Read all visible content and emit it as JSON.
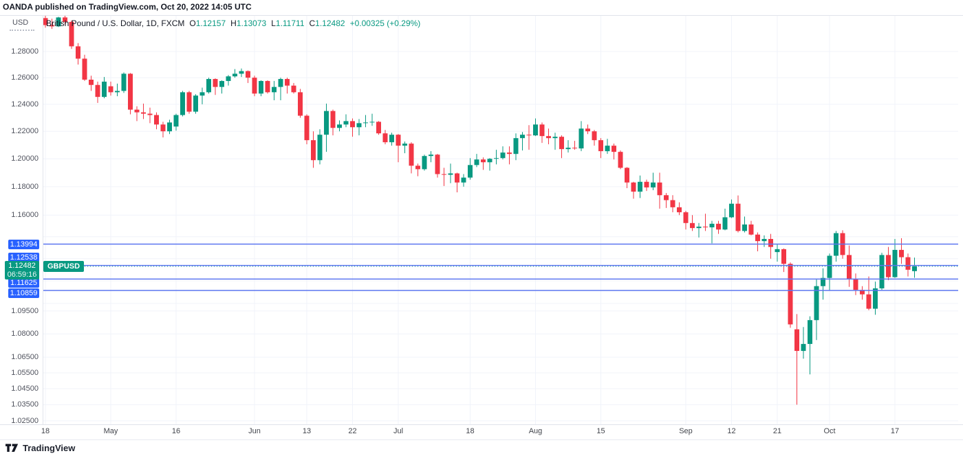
{
  "header": {
    "published_line": "OANDA published on TradingView.com, Oct 20, 2022 14:05 UTC"
  },
  "legend": {
    "symbol_title": "British Pound / U.S. Dollar, 1D, FXCM",
    "o_label": "O",
    "o": "1.12157",
    "h_label": "H",
    "h": "1.13073",
    "l_label": "L",
    "l": "1.11711",
    "c_label": "C",
    "c": "1.12482",
    "change": "+0.00325 (+0.29%)"
  },
  "price_scale_currency": "USD",
  "current": {
    "tag": "GBPUSD",
    "price": 1.12482,
    "price_text": "1.12482",
    "countdown": "06:59:16"
  },
  "footer": {
    "brand": "TradingView"
  },
  "colors": {
    "up": "#089981",
    "down": "#f23645",
    "grid": "#f0f3fa",
    "border": "#e0e3eb",
    "level_line": "#5c76f0",
    "level_label_bg": "#2962ff",
    "current_line": "#089981",
    "current_label_bg": "#089981",
    "axis_text": "#50535e",
    "title_text": "#131722"
  },
  "chart_data": {
    "type": "candlestick",
    "title": "British Pound / U.S. Dollar, 1D, FXCM",
    "symbol": "GBPUSD",
    "interval": "1D",
    "exchange": "FXCM",
    "y_scale": {
      "type": "log",
      "labels": [
        {
          "price": 1.28,
          "text": "1.28000"
        },
        {
          "price": 1.26,
          "text": "1.26000"
        },
        {
          "price": 1.24,
          "text": "1.24000"
        },
        {
          "price": 1.22,
          "text": "1.22000"
        },
        {
          "price": 1.2,
          "text": "1.20000"
        },
        {
          "price": 1.18,
          "text": "1.18000"
        },
        {
          "price": 1.16,
          "text": "1.16000"
        },
        {
          "price": 1.095,
          "text": "1.09500"
        },
        {
          "price": 1.08,
          "text": "1.08000"
        },
        {
          "price": 1.065,
          "text": "1.06500"
        },
        {
          "price": 1.055,
          "text": "1.05500"
        },
        {
          "price": 1.045,
          "text": "1.04500"
        },
        {
          "price": 1.035,
          "text": "1.03500"
        },
        {
          "price": 1.025,
          "text": "1.02500"
        }
      ],
      "unlabeled_gridlines": [
        1.145,
        1.13,
        1.115,
        1.1
      ]
    },
    "x_ticks": [
      {
        "index": 0,
        "text": "18"
      },
      {
        "index": 10,
        "text": "May"
      },
      {
        "index": 20,
        "text": "16"
      },
      {
        "index": 32,
        "text": "Jun"
      },
      {
        "index": 40,
        "text": "13"
      },
      {
        "index": 47,
        "text": "22"
      },
      {
        "index": 54,
        "text": "Jul"
      },
      {
        "index": 65,
        "text": "18"
      },
      {
        "index": 75,
        "text": "Aug"
      },
      {
        "index": 85,
        "text": "15"
      },
      {
        "index": 98,
        "text": "Sep"
      },
      {
        "index": 105,
        "text": "12"
      },
      {
        "index": 112,
        "text": "21"
      },
      {
        "index": 120,
        "text": "Oct"
      },
      {
        "index": 130,
        "text": "17"
      }
    ],
    "levels": [
      {
        "price": 1.13994,
        "text": "1.13994"
      },
      {
        "price": 1.12538,
        "text": "1.12538"
      },
      {
        "price": 1.11625,
        "text": "1.11625"
      },
      {
        "price": 1.10859,
        "text": "1.10859"
      }
    ],
    "last_price": 1.12482,
    "ohlc_last": {
      "open": 1.12157,
      "high": 1.13073,
      "low": 1.11711,
      "close": 1.12482,
      "change": "+0.00325 (+0.29%)"
    },
    "candles": [
      [
        1.306,
        1.309,
        1.2985,
        1.3005
      ],
      [
        1.3005,
        1.3055,
        1.2975,
        1.2995
      ],
      [
        1.2995,
        1.307,
        1.299,
        1.3065
      ],
      [
        1.3065,
        1.3085,
        1.301,
        1.303
      ],
      [
        1.303,
        1.304,
        1.282,
        1.284
      ],
      [
        1.284,
        1.2865,
        1.27,
        1.2745
      ],
      [
        1.2745,
        1.2775,
        1.2575,
        1.2585
      ],
      [
        1.2585,
        1.2615,
        1.25,
        1.2545
      ],
      [
        1.2545,
        1.257,
        1.241,
        1.2455
      ],
      [
        1.2455,
        1.2605,
        1.2445,
        1.257
      ],
      [
        1.2535,
        1.257,
        1.2465,
        1.249
      ],
      [
        1.249,
        1.2555,
        1.246,
        1.25
      ],
      [
        1.25,
        1.264,
        1.2485,
        1.263
      ],
      [
        1.263,
        1.2635,
        1.2325,
        1.236
      ],
      [
        1.236,
        1.2385,
        1.2275,
        1.234
      ],
      [
        1.234,
        1.2405,
        1.229,
        1.233
      ],
      [
        1.233,
        1.2375,
        1.226,
        1.232
      ],
      [
        1.232,
        1.234,
        1.2215,
        1.225
      ],
      [
        1.225,
        1.227,
        1.2155,
        1.22
      ],
      [
        1.22,
        1.2285,
        1.218,
        1.2265
      ],
      [
        1.2235,
        1.233,
        1.2205,
        1.232
      ],
      [
        1.232,
        1.25,
        1.231,
        1.249
      ],
      [
        1.249,
        1.25,
        1.233,
        1.2345
      ],
      [
        1.2345,
        1.2475,
        1.233,
        1.2465
      ],
      [
        1.2465,
        1.2525,
        1.24,
        1.249
      ],
      [
        1.249,
        1.26,
        1.248,
        1.259
      ],
      [
        1.259,
        1.2595,
        1.247,
        1.253
      ],
      [
        1.253,
        1.258,
        1.248,
        1.2575
      ],
      [
        1.2575,
        1.262,
        1.254,
        1.261
      ],
      [
        1.261,
        1.2665,
        1.26,
        1.263
      ],
      [
        1.263,
        1.267,
        1.2605,
        1.265
      ],
      [
        1.265,
        1.2655,
        1.256,
        1.26
      ],
      [
        1.26,
        1.2615,
        1.246,
        1.248
      ],
      [
        1.248,
        1.258,
        1.246,
        1.2575
      ],
      [
        1.2575,
        1.258,
        1.248,
        1.249
      ],
      [
        1.249,
        1.2575,
        1.243,
        1.253
      ],
      [
        1.253,
        1.26,
        1.243,
        1.259
      ],
      [
        1.259,
        1.26,
        1.248,
        1.254
      ],
      [
        1.254,
        1.256,
        1.248,
        1.249
      ],
      [
        1.249,
        1.2515,
        1.23,
        1.2315
      ],
      [
        1.2315,
        1.2325,
        1.2105,
        1.2135
      ],
      [
        1.2135,
        1.22,
        1.1935,
        1.199
      ],
      [
        1.199,
        1.2215,
        1.196,
        1.2175
      ],
      [
        1.2175,
        1.2405,
        1.205,
        1.235
      ],
      [
        1.235,
        1.236,
        1.217,
        1.2225
      ],
      [
        1.2225,
        1.228,
        1.22,
        1.225
      ],
      [
        1.225,
        1.2325,
        1.223,
        1.2275
      ],
      [
        1.2275,
        1.2295,
        1.216,
        1.223
      ],
      [
        1.223,
        1.229,
        1.217,
        1.226
      ],
      [
        1.226,
        1.232,
        1.223,
        1.2265
      ],
      [
        1.2265,
        1.233,
        1.224,
        1.227
      ],
      [
        1.227,
        1.2275,
        1.2175,
        1.2185
      ],
      [
        1.2185,
        1.221,
        1.2105,
        1.212
      ],
      [
        1.212,
        1.219,
        1.2095,
        1.2175
      ],
      [
        1.2175,
        1.218,
        1.1975,
        1.2095
      ],
      [
        1.2095,
        1.2125,
        1.204,
        1.211
      ],
      [
        1.211,
        1.212,
        1.1895,
        1.195
      ],
      [
        1.195,
        1.1965,
        1.1875,
        1.1925
      ],
      [
        1.1925,
        1.203,
        1.1915,
        1.202
      ],
      [
        1.202,
        1.2055,
        1.1975,
        1.203
      ],
      [
        1.203,
        1.2035,
        1.1865,
        1.189
      ],
      [
        1.189,
        1.1935,
        1.1805,
        1.1885
      ],
      [
        1.1885,
        1.1965,
        1.1825,
        1.1895
      ],
      [
        1.1895,
        1.19,
        1.176,
        1.183
      ],
      [
        1.183,
        1.189,
        1.18,
        1.1865
      ],
      [
        1.1865,
        1.2005,
        1.185,
        1.1955
      ],
      [
        1.1955,
        1.2035,
        1.194,
        1.1995
      ],
      [
        1.1995,
        1.201,
        1.192,
        1.1975
      ],
      [
        1.1975,
        1.2005,
        1.1915,
        1.2
      ],
      [
        1.2,
        1.2065,
        1.196,
        1.2005
      ],
      [
        1.2005,
        1.209,
        1.1995,
        1.2045
      ],
      [
        1.2045,
        1.209,
        1.196,
        1.2035
      ],
      [
        1.2035,
        1.2185,
        1.199,
        1.215
      ],
      [
        1.215,
        1.2195,
        1.206,
        1.2175
      ],
      [
        1.2175,
        1.2245,
        1.2065,
        1.217
      ],
      [
        1.217,
        1.2295,
        1.2165,
        1.225
      ],
      [
        1.225,
        1.2265,
        1.2115,
        1.2165
      ],
      [
        1.2165,
        1.222,
        1.2105,
        1.215
      ],
      [
        1.215,
        1.219,
        1.2065,
        1.216
      ],
      [
        1.216,
        1.217,
        1.2005,
        1.207
      ],
      [
        1.207,
        1.2135,
        1.2045,
        1.208
      ],
      [
        1.208,
        1.213,
        1.2065,
        1.2075
      ],
      [
        1.2075,
        1.2275,
        1.2055,
        1.222
      ],
      [
        1.222,
        1.225,
        1.218,
        1.22
      ],
      [
        1.22,
        1.221,
        1.2095,
        1.2135
      ],
      [
        1.2135,
        1.215,
        1.2005,
        1.2055
      ],
      [
        1.2055,
        1.2145,
        1.2035,
        1.2095
      ],
      [
        1.2095,
        1.211,
        1.1995,
        1.205
      ],
      [
        1.205,
        1.206,
        1.1925,
        1.1935
      ],
      [
        1.1935,
        1.194,
        1.179,
        1.183
      ],
      [
        1.183,
        1.1835,
        1.1715,
        1.1765
      ],
      [
        1.1765,
        1.188,
        1.172,
        1.1835
      ],
      [
        1.1835,
        1.185,
        1.177,
        1.1795
      ],
      [
        1.1795,
        1.19,
        1.1775,
        1.183
      ],
      [
        1.183,
        1.19,
        1.1645,
        1.174
      ],
      [
        1.174,
        1.1755,
        1.165,
        1.1705
      ],
      [
        1.1705,
        1.174,
        1.162,
        1.1655
      ],
      [
        1.1655,
        1.169,
        1.16,
        1.162
      ],
      [
        1.162,
        1.163,
        1.15,
        1.1545
      ],
      [
        1.1545,
        1.16,
        1.149,
        1.151
      ],
      [
        1.151,
        1.1545,
        1.1445,
        1.152
      ],
      [
        1.152,
        1.161,
        1.149,
        1.1515
      ],
      [
        1.1515,
        1.156,
        1.1405,
        1.154
      ],
      [
        1.154,
        1.156,
        1.147,
        1.15
      ],
      [
        1.15,
        1.1645,
        1.1495,
        1.1585
      ],
      [
        1.1585,
        1.171,
        1.158,
        1.168
      ],
      [
        1.168,
        1.1738,
        1.148,
        1.149
      ],
      [
        1.149,
        1.159,
        1.148,
        1.1535
      ],
      [
        1.1535,
        1.156,
        1.146,
        1.1465
      ],
      [
        1.1465,
        1.148,
        1.135,
        1.142
      ],
      [
        1.142,
        1.146,
        1.138,
        1.1435
      ],
      [
        1.1435,
        1.147,
        1.13,
        1.138
      ],
      [
        1.1345,
        1.14,
        1.128,
        1.1365
      ],
      [
        1.1365,
        1.137,
        1.121,
        1.1265
      ],
      [
        1.1265,
        1.1275,
        1.084,
        1.0862
      ],
      [
        1.083,
        1.093,
        1.035,
        1.069
      ],
      [
        1.069,
        1.0845,
        1.064,
        1.0735
      ],
      [
        1.0735,
        1.0915,
        1.054,
        1.089
      ],
      [
        1.089,
        1.1165,
        1.076,
        1.1115
      ],
      [
        1.1115,
        1.1235,
        1.1025,
        1.117
      ],
      [
        1.117,
        1.1335,
        1.1085,
        1.132
      ],
      [
        1.132,
        1.149,
        1.128,
        1.1475
      ],
      [
        1.1475,
        1.1495,
        1.13,
        1.1325
      ],
      [
        1.1325,
        1.139,
        1.111,
        1.116
      ],
      [
        1.116,
        1.12,
        1.1055,
        1.109
      ],
      [
        1.109,
        1.1115,
        1.1025,
        1.106
      ],
      [
        1.106,
        1.118,
        1.0955,
        1.0965
      ],
      [
        1.0965,
        1.1145,
        1.0925,
        1.11
      ],
      [
        1.11,
        1.134,
        1.109,
        1.1325
      ],
      [
        1.1325,
        1.138,
        1.1155,
        1.1175
      ],
      [
        1.1175,
        1.1435,
        1.117,
        1.136
      ],
      [
        1.136,
        1.144,
        1.1265,
        1.131
      ],
      [
        1.131,
        1.1335,
        1.118,
        1.1225
      ],
      [
        1.12157,
        1.13073,
        1.11711,
        1.12482
      ]
    ]
  }
}
